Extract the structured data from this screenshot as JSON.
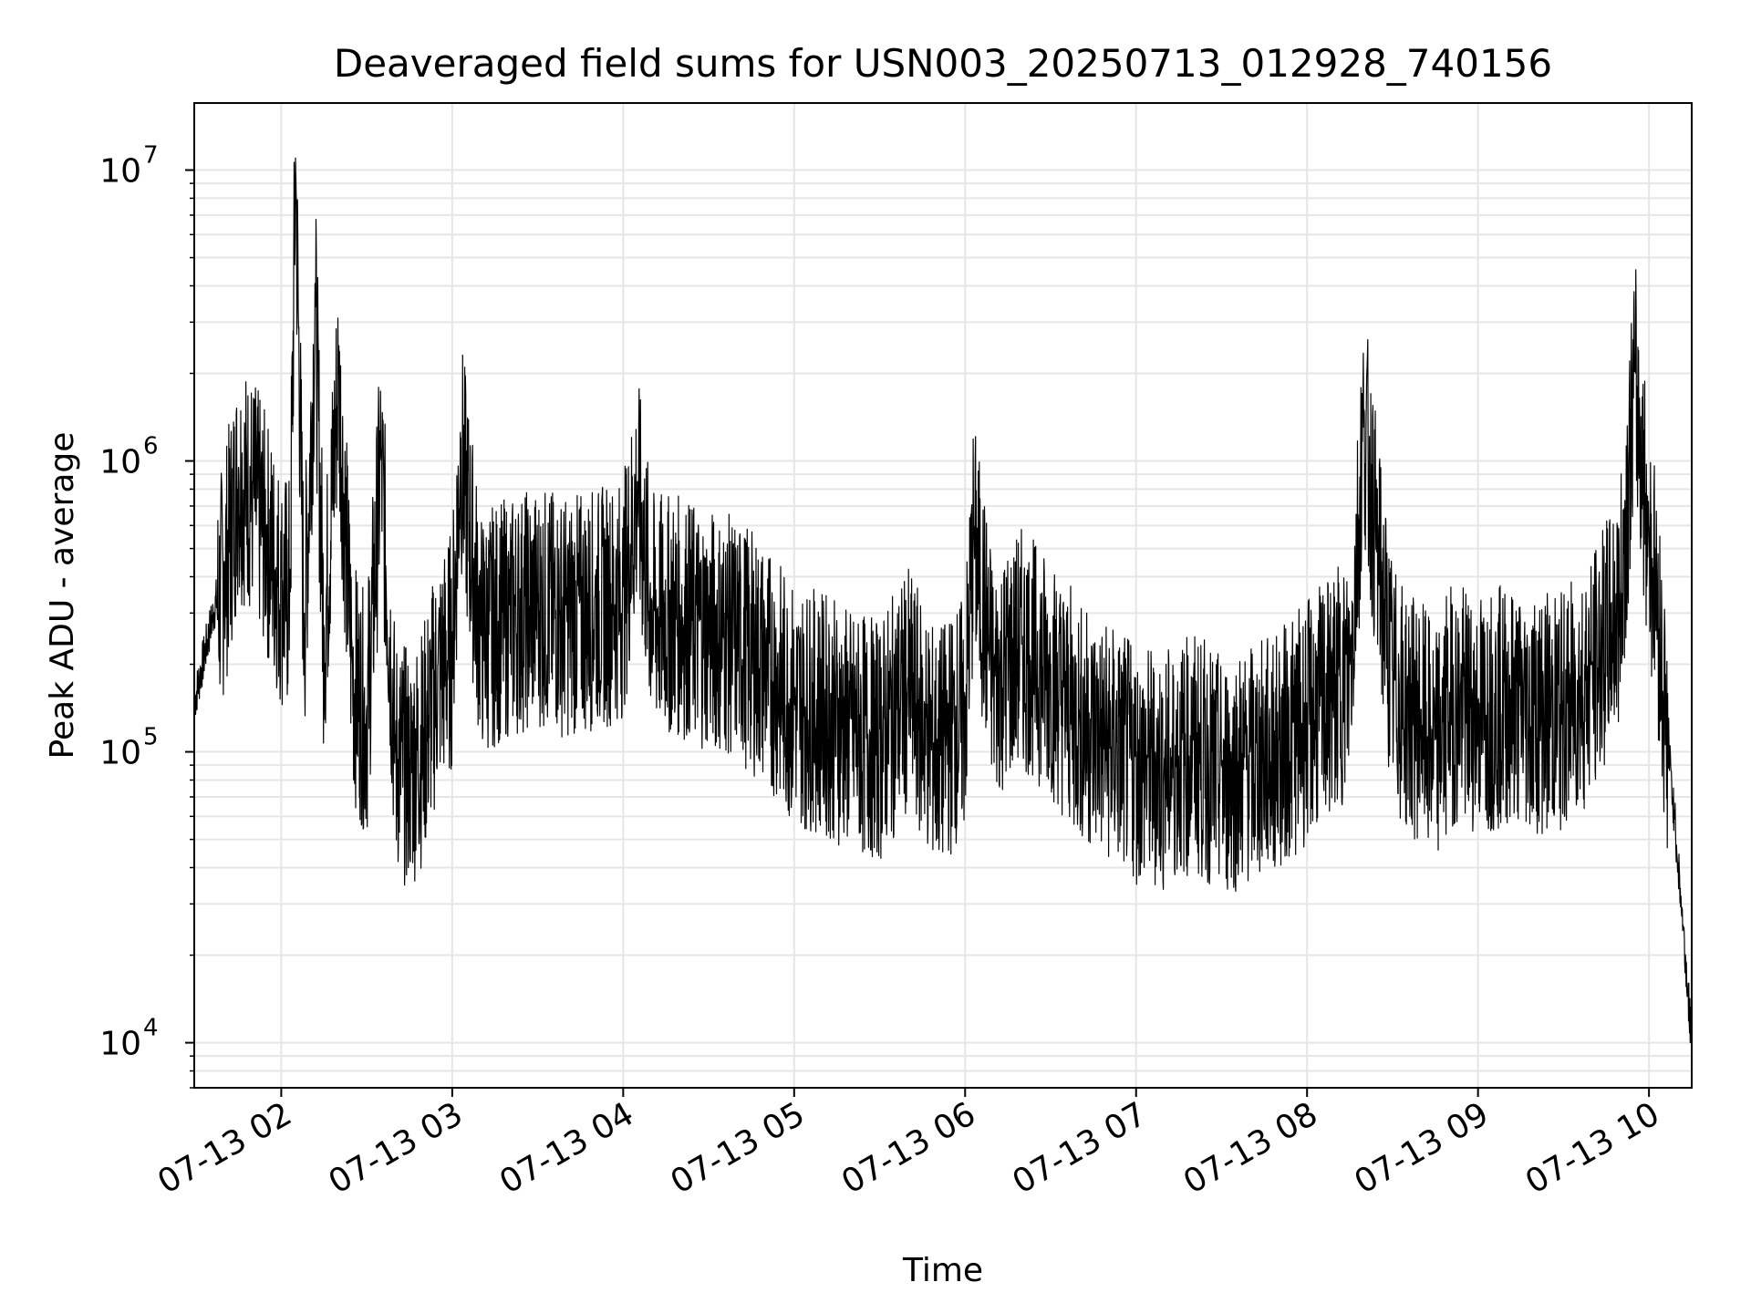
{
  "chart_data": {
    "type": "line",
    "title": "Deaveraged field sums for USN003_20250713_012928_740156",
    "xlabel": "Time",
    "ylabel": "Peak ADU - average",
    "yscale": "log",
    "ylim": [
      7000,
      17000000
    ],
    "xlim": [
      "2025-07-13 01:29:28",
      "2025-07-13 10:15:00"
    ],
    "x_ticks": [
      {
        "time": "2025-07-13 02:00",
        "label": "07-13 02"
      },
      {
        "time": "2025-07-13 03:00",
        "label": "07-13 03"
      },
      {
        "time": "2025-07-13 04:00",
        "label": "07-13 04"
      },
      {
        "time": "2025-07-13 05:00",
        "label": "07-13 05"
      },
      {
        "time": "2025-07-13 06:00",
        "label": "07-13 06"
      },
      {
        "time": "2025-07-13 07:00",
        "label": "07-13 07"
      },
      {
        "time": "2025-07-13 08:00",
        "label": "07-13 08"
      },
      {
        "time": "2025-07-13 09:00",
        "label": "07-13 09"
      },
      {
        "time": "2025-07-13 10:00",
        "label": "07-13 10"
      }
    ],
    "y_ticks": [
      {
        "value": 10000,
        "base": "10",
        "exp": "4"
      },
      {
        "value": 100000,
        "base": "10",
        "exp": "5"
      },
      {
        "value": 1000000,
        "base": "10",
        "exp": "6"
      },
      {
        "value": 10000000,
        "base": "10",
        "exp": "7"
      }
    ],
    "grid": true,
    "line_color": "#000000",
    "grid_color": "#e6e6e6",
    "series": [
      {
        "x": [
          "2025-07-13 01:29:28",
          "2025-07-13 01:35",
          "2025-07-13 01:40",
          "2025-07-13 01:45",
          "2025-07-13 01:50",
          "2025-07-13 01:55",
          "2025-07-13 02:00",
          "2025-07-13 02:03",
          "2025-07-13 02:05",
          "2025-07-13 02:08",
          "2025-07-13 02:12",
          "2025-07-13 02:15",
          "2025-07-13 02:20",
          "2025-07-13 02:25",
          "2025-07-13 02:30",
          "2025-07-13 02:35",
          "2025-07-13 02:40",
          "2025-07-13 02:45",
          "2025-07-13 02:50",
          "2025-07-13 02:55",
          "2025-07-13 03:00",
          "2025-07-13 03:03",
          "2025-07-13 03:10",
          "2025-07-13 03:20",
          "2025-07-13 03:30",
          "2025-07-13 03:40",
          "2025-07-13 03:50",
          "2025-07-13 04:00",
          "2025-07-13 04:05",
          "2025-07-13 04:10",
          "2025-07-13 04:20",
          "2025-07-13 04:30",
          "2025-07-13 04:40",
          "2025-07-13 04:50",
          "2025-07-13 05:00",
          "2025-07-13 05:10",
          "2025-07-13 05:20",
          "2025-07-13 05:30",
          "2025-07-13 05:40",
          "2025-07-13 05:50",
          "2025-07-13 06:00",
          "2025-07-13 06:03",
          "2025-07-13 06:10",
          "2025-07-13 06:20",
          "2025-07-13 06:30",
          "2025-07-13 06:40",
          "2025-07-13 06:50",
          "2025-07-13 07:00",
          "2025-07-13 07:10",
          "2025-07-13 07:20",
          "2025-07-13 07:30",
          "2025-07-13 07:40",
          "2025-07-13 07:50",
          "2025-07-13 08:00",
          "2025-07-13 08:15",
          "2025-07-13 08:20",
          "2025-07-13 08:25",
          "2025-07-13 08:30",
          "2025-07-13 08:35",
          "2025-07-13 08:40",
          "2025-07-13 08:45",
          "2025-07-13 08:50",
          "2025-07-13 09:00",
          "2025-07-13 09:10",
          "2025-07-13 09:20",
          "2025-07-13 09:30",
          "2025-07-13 09:40",
          "2025-07-13 09:50",
          "2025-07-13 09:55",
          "2025-07-13 10:00",
          "2025-07-13 10:03",
          "2025-07-13 10:06",
          "2025-07-13 10:09",
          "2025-07-13 10:12",
          "2025-07-13 10:15"
        ],
        "values": [
          150000,
          270000,
          450000,
          950000,
          850000,
          600000,
          400000,
          380000,
          11000000,
          280000,
          3600000,
          260000,
          2100000,
          200000,
          140000,
          1100000,
          110000,
          95000,
          120000,
          200000,
          250000,
          1200000,
          280000,
          320000,
          350000,
          320000,
          340000,
          370000,
          850000,
          330000,
          320000,
          290000,
          270000,
          220000,
          160000,
          150000,
          130000,
          120000,
          180000,
          110000,
          150000,
          600000,
          190000,
          250000,
          200000,
          140000,
          120000,
          100000,
          95000,
          110000,
          90000,
          100000,
          110000,
          140000,
          200000,
          1500000,
          500000,
          190000,
          150000,
          140000,
          110000,
          160000,
          150000,
          160000,
          150000,
          150000,
          200000,
          350000,
          2100000,
          600000,
          350000,
          130000,
          60000,
          25000,
          10000
        ]
      }
    ]
  }
}
